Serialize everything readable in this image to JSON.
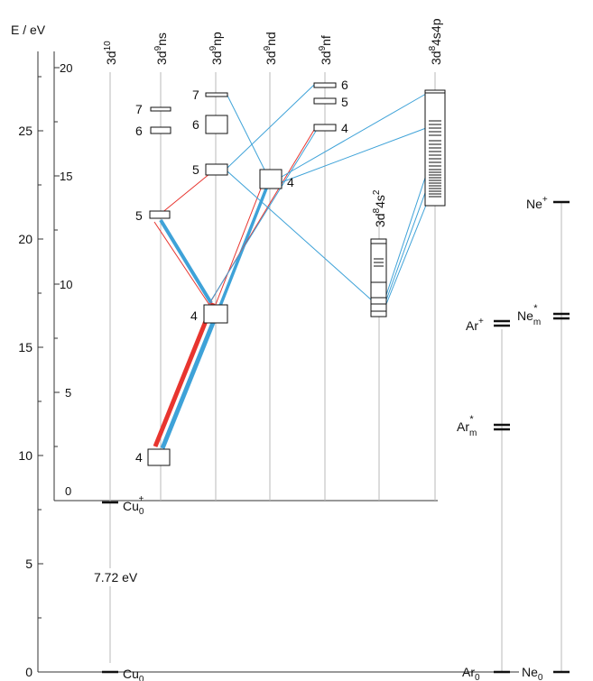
{
  "axis": {
    "label": "E / eV",
    "main_ticks": [
      "0",
      "5",
      "10",
      "15",
      "20",
      "25"
    ],
    "inner_ticks": [
      "0",
      "5",
      "10",
      "15",
      "20"
    ]
  },
  "columns": [
    {
      "id": "3d10",
      "base": "3d",
      "sup": "10",
      "rest": ""
    },
    {
      "id": "3d9ns",
      "base": "3d",
      "sup": "9",
      "rest": "ns"
    },
    {
      "id": "3d9np",
      "base": "3d",
      "sup": "9",
      "rest": "np"
    },
    {
      "id": "3d9nd",
      "base": "3d",
      "sup": "9",
      "rest": "nd"
    },
    {
      "id": "3d9nf",
      "base": "3d",
      "sup": "9",
      "rest": "nf"
    },
    {
      "id": "3d84s2",
      "base": "3d",
      "sup": "8",
      "rest": "4s",
      "sup2": "2"
    },
    {
      "id": "3d84s4p",
      "base": "3d",
      "sup": "8",
      "rest": "4s4p"
    }
  ],
  "cu_levels": {
    "ground": {
      "base": "Cu",
      "sub": "0"
    },
    "ion": {
      "base": "Cu",
      "sub": "0",
      "sup": "+"
    },
    "gap_label": "7.72 eV"
  },
  "box_labels": {
    "ns": [
      "7",
      "6",
      "5",
      "4"
    ],
    "np": [
      "7",
      "6",
      "5",
      "4"
    ],
    "nd": [
      "4"
    ],
    "nf": [
      "6",
      "5",
      "4"
    ]
  },
  "ar_levels": {
    "ground": {
      "base": "Ar",
      "sub": "0"
    },
    "metastable": {
      "base": "Ar",
      "sub": "m",
      "sup": "*"
    },
    "ion": {
      "base": "Ar",
      "sup": "+"
    }
  },
  "ne_levels": {
    "ground": {
      "base": "Ne",
      "sub": "0"
    },
    "metastable": {
      "base": "Ne",
      "sub": "m",
      "sup": "*"
    },
    "ion": {
      "base": "Ne",
      "sup": "+"
    }
  },
  "colors": {
    "red_transition": "#e8352f",
    "blue_transition": "#3ea2d8",
    "guide_line": "#b8b8b8",
    "level": "#111111"
  }
}
